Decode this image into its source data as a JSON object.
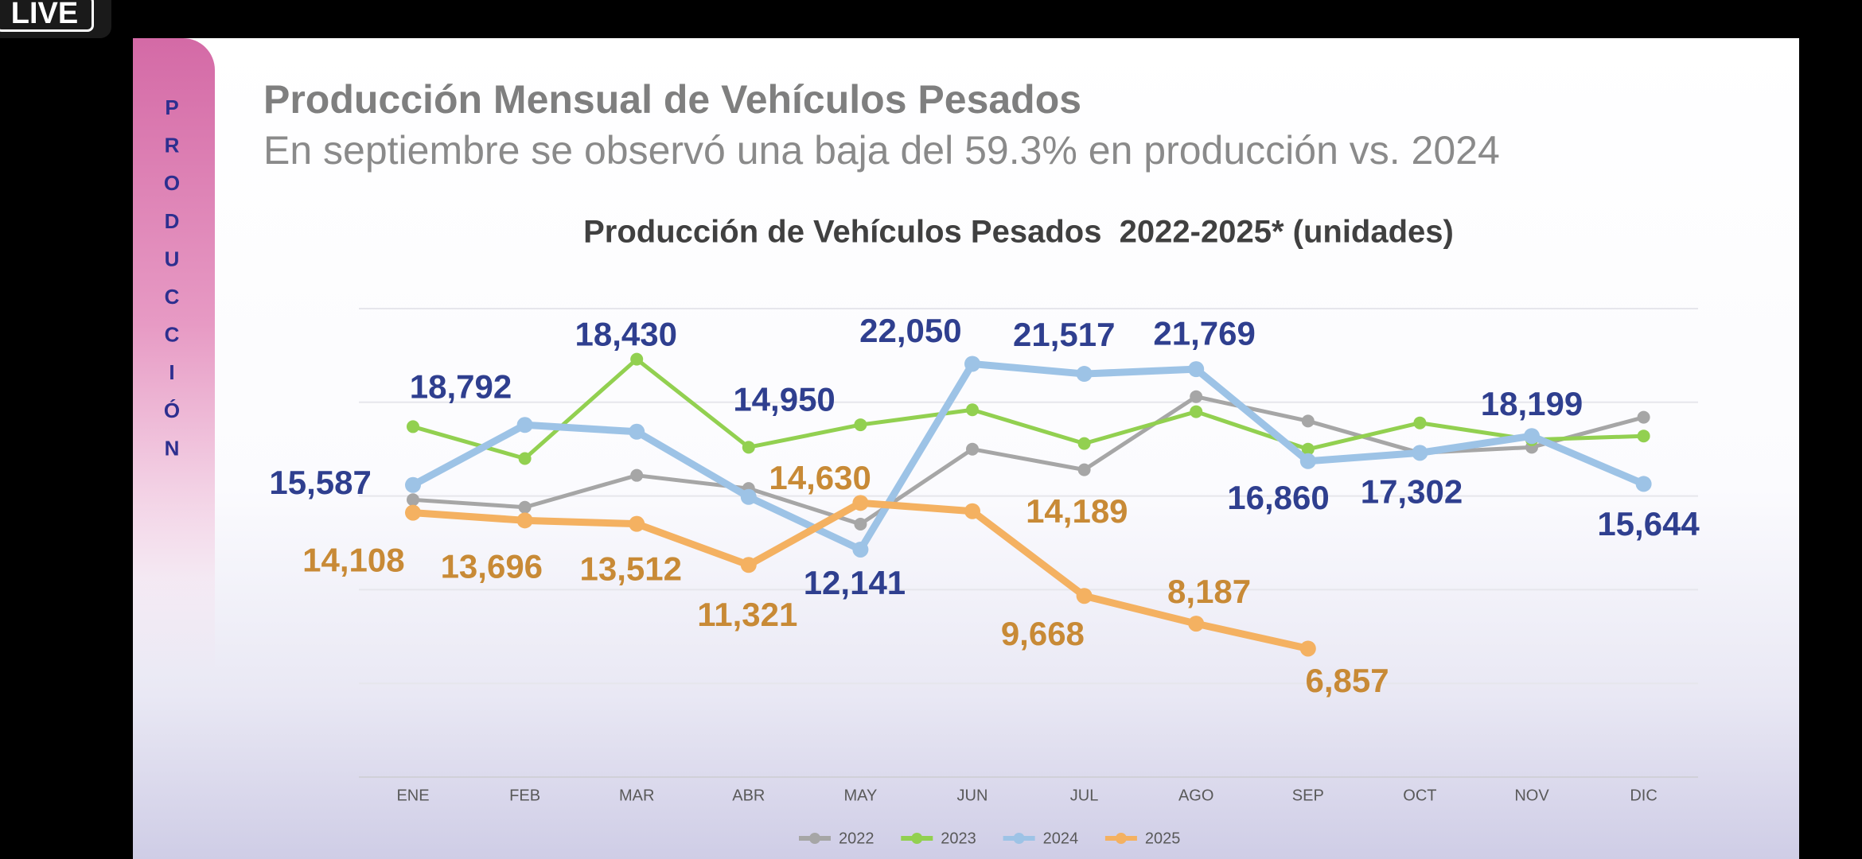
{
  "live_badge": "LIVE",
  "side_label": "PRODUCCIÓN",
  "header": {
    "title": "Producción Mensual de Vehículos Pesados",
    "subtitle": "En septiembre se observó una baja del 59.3% en producción vs. 2024"
  },
  "chart_data": {
    "type": "line",
    "title": "Producción de Vehículos Pesados  2022-2025* (unidades)",
    "categories": [
      "ENE",
      "FEB",
      "MAR",
      "ABR",
      "MAY",
      "JUN",
      "JUL",
      "AGO",
      "SEP",
      "OCT",
      "NOV",
      "DIC"
    ],
    "ylim": [
      0,
      25000
    ],
    "yticks": [
      0,
      5000,
      10000,
      15000,
      20000,
      25000
    ],
    "grid": true,
    "legend": "bottom",
    "series": [
      {
        "name": "2022",
        "color": "#a6a6a6",
        "values": [
          14800,
          14400,
          16100,
          15400,
          13500,
          17500,
          16400,
          20300,
          19000,
          17300,
          17600,
          19200
        ]
      },
      {
        "name": "2023",
        "color": "#92d050",
        "values": [
          18700,
          17000,
          22300,
          17600,
          18800,
          19600,
          17800,
          19500,
          17500,
          18900,
          18000,
          18200
        ]
      },
      {
        "name": "2024",
        "color": "#9dc3e6",
        "label_color": "#2f3f8f",
        "values": [
          15587,
          18792,
          18430,
          14950,
          12141,
          22050,
          21517,
          21769,
          16860,
          17302,
          18199,
          15644
        ],
        "value_labels": [
          "15,587",
          "18,792",
          "18,430",
          "14,950",
          "12,141",
          "22,050",
          "21,517",
          "21,769",
          "16,860",
          "17,302",
          "18,199",
          "15,644"
        ]
      },
      {
        "name": "2025",
        "color": "#f4b161",
        "label_color": "#c88a36",
        "values": [
          14108,
          13696,
          13512,
          11321,
          14630,
          14189,
          9668,
          8187,
          6857,
          null,
          null,
          null
        ],
        "value_labels": [
          "14,108",
          "13,696",
          "13,512",
          "11,321",
          "14,630",
          "14,189",
          "9,668",
          "8,187",
          "6,857",
          null,
          null,
          null
        ]
      }
    ]
  }
}
